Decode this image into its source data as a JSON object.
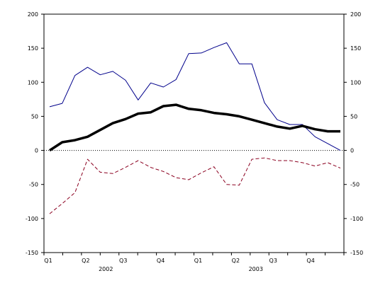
{
  "chart_data": {
    "type": "line",
    "title": "",
    "xlabel": "",
    "ylabel": "",
    "ylim": [
      -150,
      200
    ],
    "y_ticks": [
      -150,
      -100,
      -50,
      0,
      50,
      100,
      150,
      200
    ],
    "y_tick_labels": [
      "-150",
      "-100",
      "-50",
      "0",
      "50",
      "100",
      "150",
      "200"
    ],
    "right_axis_mirrors_left": true,
    "zero_line": "dotted",
    "grid": false,
    "legend": "none",
    "x_tick_labels": [
      "Q1",
      "Q2",
      "Q3",
      "Q4",
      "Q1",
      "Q2",
      "Q3",
      "Q4"
    ],
    "x_group_labels": [
      "2002",
      "2003"
    ],
    "x_tick_count": 17,
    "series": [
      {
        "color": "#00008b",
        "style": "solid-thin",
        "values": [
          64,
          69,
          110,
          122,
          111,
          116,
          103,
          74,
          99,
          93,
          104,
          142,
          143,
          151,
          158,
          127,
          127,
          70,
          45,
          38,
          38,
          20,
          10,
          0
        ]
      },
      {
        "color": "#000000",
        "style": "solid-thick",
        "values": [
          0,
          12,
          15,
          20,
          30,
          40,
          46,
          54,
          56,
          65,
          67,
          61,
          59,
          55,
          53,
          50,
          45,
          40,
          35,
          32,
          36,
          31,
          28,
          28
        ]
      },
      {
        "color": "#8b0020",
        "style": "dashed",
        "values": [
          -93,
          -78,
          -62,
          -13,
          -32,
          -34,
          -25,
          -15,
          -25,
          -31,
          -40,
          -43,
          -33,
          -24,
          -50,
          -51,
          -13,
          -11,
          -15,
          -15,
          -18,
          -23,
          -18,
          -26
        ]
      }
    ]
  }
}
